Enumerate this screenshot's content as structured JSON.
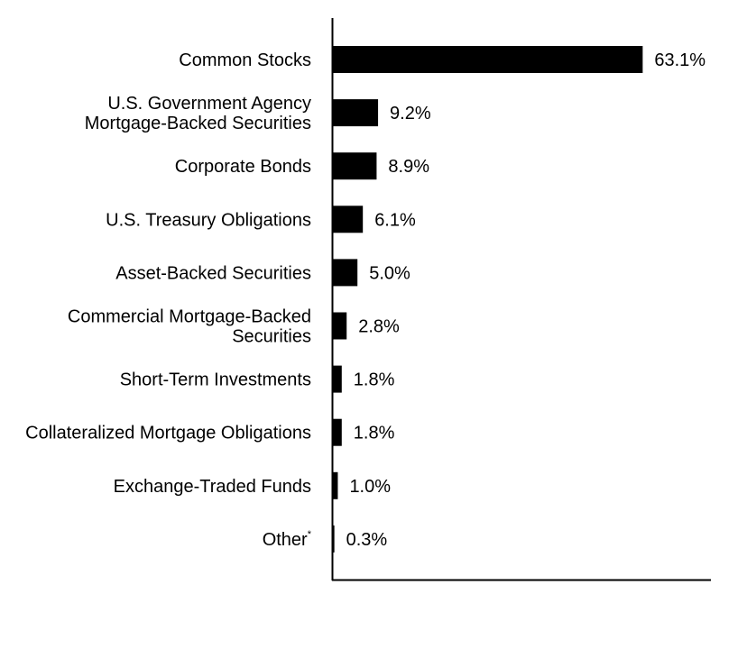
{
  "chart_data": {
    "type": "bar",
    "orientation": "horizontal",
    "categories": [
      [
        "Common Stocks"
      ],
      [
        "U.S. Government Agency",
        "Mortgage-Backed Securities"
      ],
      [
        "Corporate Bonds"
      ],
      [
        "U.S. Treasury Obligations"
      ],
      [
        "Asset-Backed Securities"
      ],
      [
        "Commercial Mortgage-Backed",
        "Securities"
      ],
      [
        "Short-Term Investments"
      ],
      [
        "Collateralized Mortgage Obligations"
      ],
      [
        "Exchange-Traded Funds"
      ],
      [
        "Other"
      ]
    ],
    "category_superscripts": [
      "",
      "",
      "",
      "",
      "",
      "",
      "",
      "",
      "",
      "*"
    ],
    "values": [
      63.1,
      9.2,
      8.9,
      6.1,
      5.0,
      2.8,
      1.8,
      1.8,
      1.0,
      0.3
    ],
    "value_labels": [
      "63.1%",
      "9.2%",
      "8.9%",
      "6.1%",
      "5.0%",
      "2.8%",
      "1.8%",
      "1.8%",
      "1.0%",
      "0.3%"
    ],
    "xlim": [
      0,
      77
    ],
    "bar_color": "#000000",
    "grid": false,
    "legend": "none"
  }
}
